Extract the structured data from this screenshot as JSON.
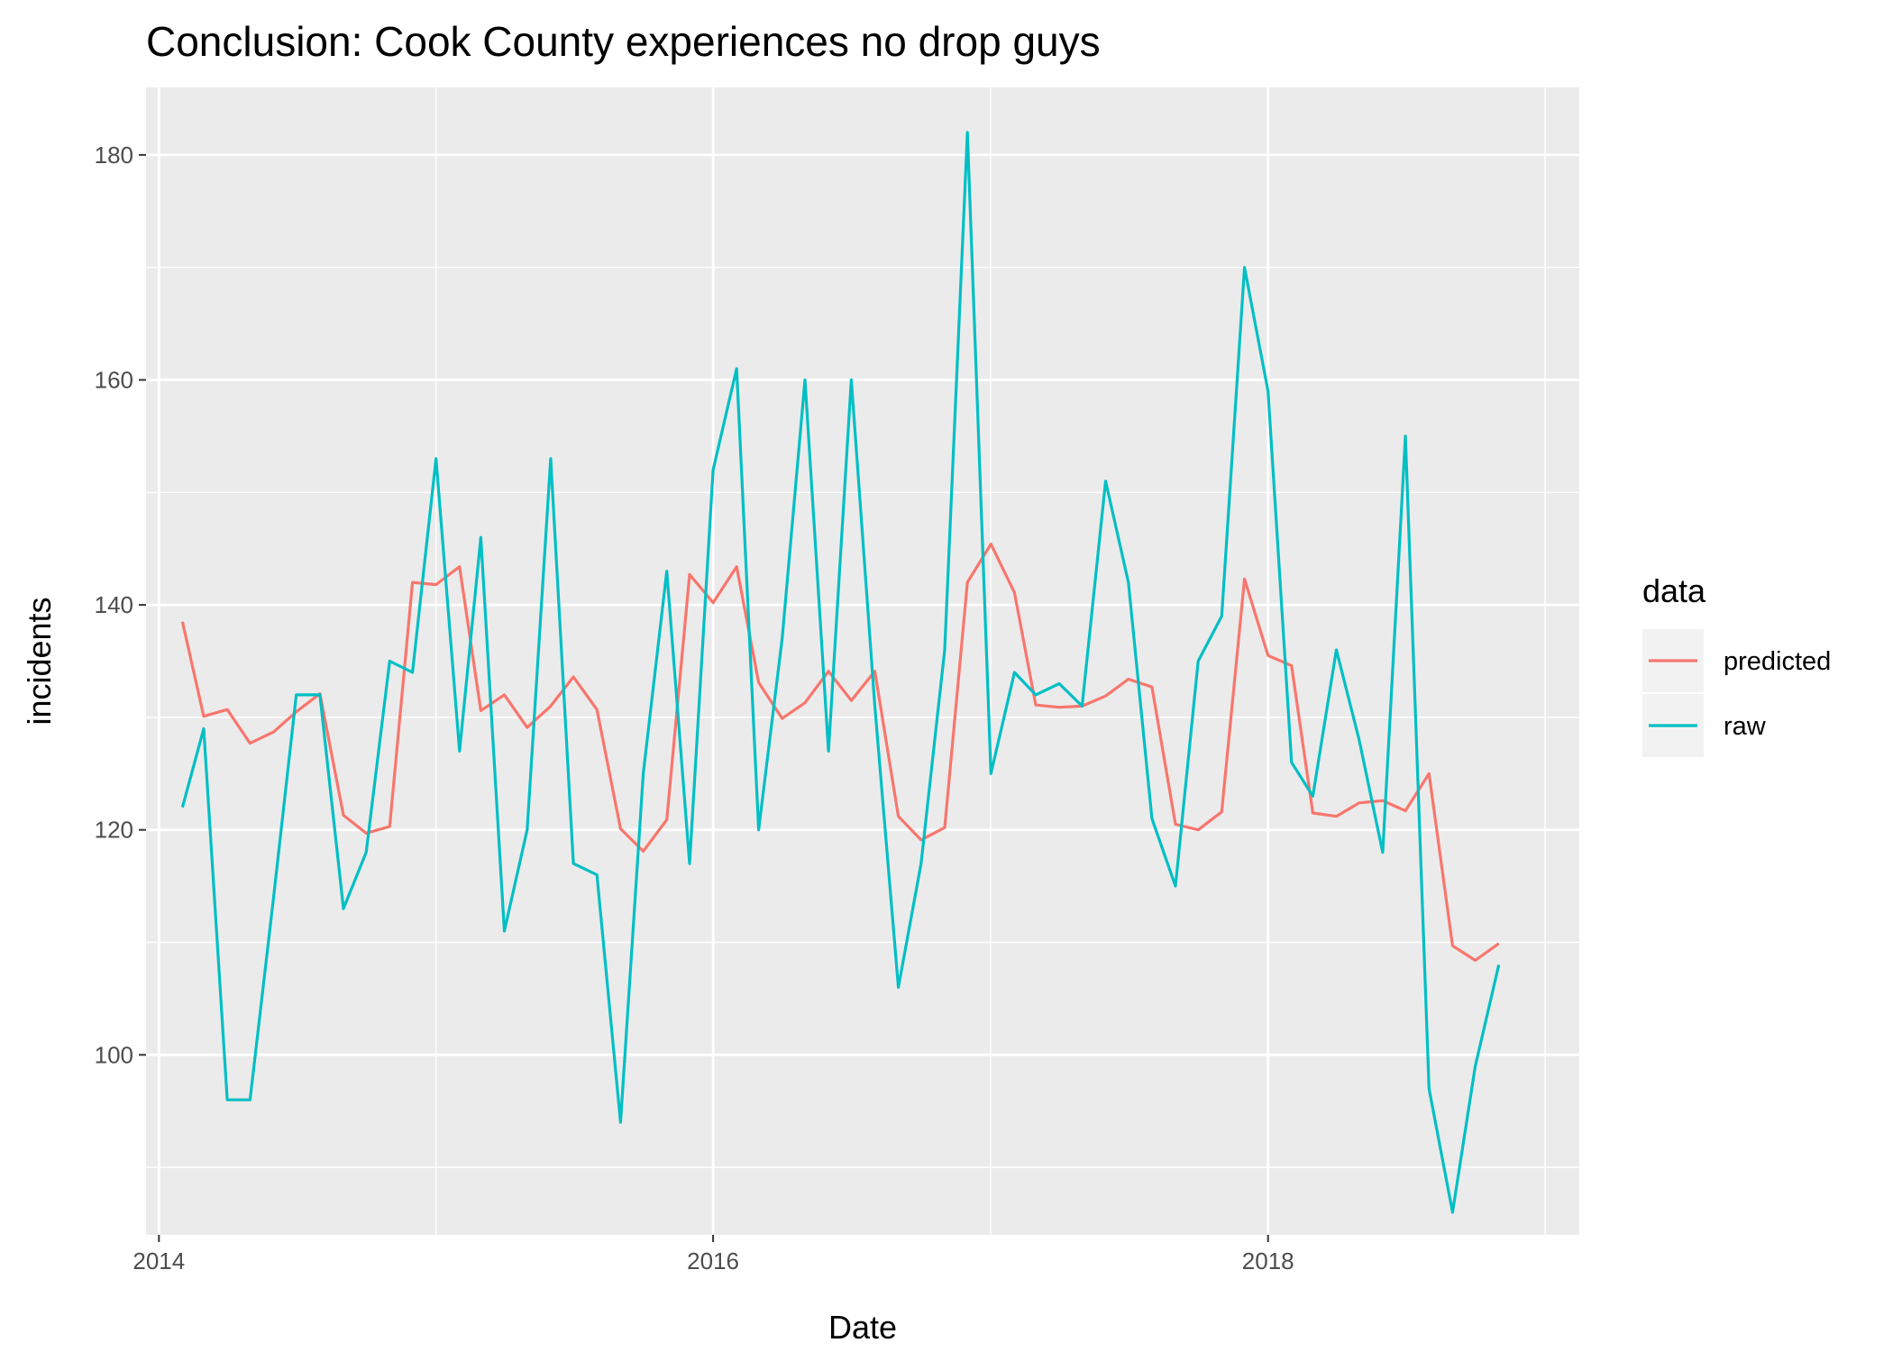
{
  "chart_data": {
    "type": "line",
    "title": "Conclusion: Cook County experiences no drop guys",
    "xlabel": "Date",
    "ylabel": "incidents",
    "xlim": [
      "2013-12-15",
      "2019-02-15"
    ],
    "ylim": [
      84,
      186
    ],
    "x_ticks": [
      "2014-01-01",
      "2016-01-01",
      "2018-01-01"
    ],
    "x_tick_labels": [
      "2014",
      "2016",
      "2018"
    ],
    "y_ticks": [
      100,
      120,
      140,
      160,
      180
    ],
    "grid": true,
    "legend": {
      "title": "data",
      "position": "right"
    },
    "x": [
      "2014-02-01",
      "2014-03-01",
      "2014-04-01",
      "2014-05-01",
      "2014-06-01",
      "2014-07-01",
      "2014-08-01",
      "2014-09-01",
      "2014-10-01",
      "2014-11-01",
      "2014-12-01",
      "2015-01-01",
      "2015-02-01",
      "2015-03-01",
      "2015-04-01",
      "2015-05-01",
      "2015-06-01",
      "2015-07-01",
      "2015-08-01",
      "2015-09-01",
      "2015-10-01",
      "2015-11-01",
      "2015-12-01",
      "2016-01-01",
      "2016-02-01",
      "2016-03-01",
      "2016-04-01",
      "2016-05-01",
      "2016-06-01",
      "2016-07-01",
      "2016-08-01",
      "2016-09-01",
      "2016-10-01",
      "2016-11-01",
      "2016-12-01",
      "2017-01-01",
      "2017-02-01",
      "2017-03-01",
      "2017-04-01",
      "2017-05-01",
      "2017-06-01",
      "2017-07-01",
      "2017-08-01",
      "2017-09-01",
      "2017-10-01",
      "2017-11-01",
      "2017-12-01",
      "2018-01-01",
      "2018-02-01",
      "2018-03-01",
      "2018-04-01",
      "2018-05-01",
      "2018-06-01",
      "2018-07-01",
      "2018-08-01",
      "2018-09-01",
      "2018-10-01",
      "2018-11-01"
    ],
    "series": [
      {
        "name": "predicted",
        "color": "#F8766D",
        "values": [
          138.5,
          130.1,
          130.7,
          127.7,
          128.7,
          130.5,
          132.1,
          121.3,
          119.7,
          120.3,
          142.0,
          141.8,
          143.4,
          130.6,
          132.0,
          129.1,
          131.0,
          133.6,
          130.7,
          120.1,
          118.1,
          120.9,
          142.7,
          140.2,
          143.4,
          133.1,
          129.9,
          131.3,
          134.1,
          131.5,
          134.1,
          121.2,
          119.1,
          120.2,
          142.0,
          145.4,
          141.1,
          131.1,
          130.9,
          131.0,
          131.9,
          133.4,
          132.7,
          120.5,
          120.0,
          121.6,
          142.3,
          135.5,
          134.6,
          121.5,
          121.2,
          122.4,
          122.6,
          121.7,
          125.0,
          109.7,
          108.4,
          109.9
        ]
      },
      {
        "name": "raw",
        "color": "#00BFC4",
        "values": [
          122,
          129,
          96,
          96,
          114,
          132,
          132,
          113,
          118,
          135,
          134,
          153,
          127,
          146,
          111,
          120,
          153,
          117,
          116,
          94,
          125,
          143,
          117,
          152,
          161,
          120,
          137,
          160,
          127,
          160,
          131,
          106,
          117,
          136,
          182,
          125,
          134,
          132,
          133,
          131,
          151,
          142,
          121,
          115,
          135,
          139,
          170,
          159,
          126,
          123,
          136,
          128,
          118,
          155,
          97,
          86,
          99,
          108
        ]
      }
    ]
  }
}
